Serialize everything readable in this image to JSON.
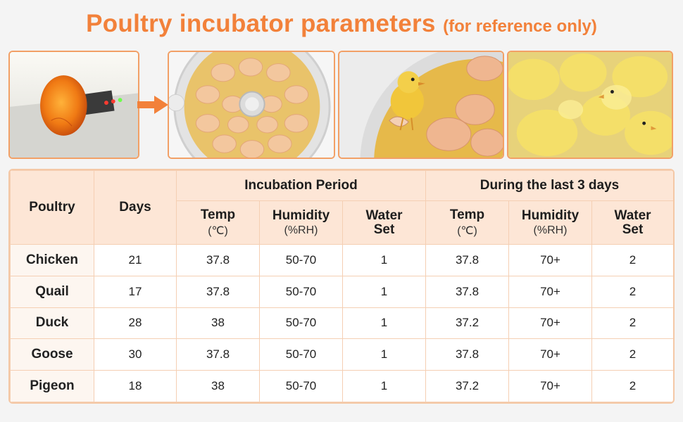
{
  "title": {
    "main": "Poultry incubator parameters",
    "sub": "(for reference only)"
  },
  "images": [
    {
      "name": "candled-egg-photo"
    },
    {
      "name": "egg-tray-photo"
    },
    {
      "name": "hatching-chick-photo"
    },
    {
      "name": "chicks-group-photo"
    }
  ],
  "table": {
    "headers": {
      "poultry": "Poultry",
      "days": "Days",
      "incubation": "Incubation Period",
      "last3": "During the last 3 days",
      "temp": "Temp",
      "temp_unit": "(℃)",
      "humidity": "Humidity",
      "humidity_unit": "(%RH)",
      "water": "Water",
      "water2": "Set"
    },
    "rows": [
      {
        "poultry": "Chicken",
        "days": "21",
        "temp": "37.8",
        "humidity": "50-70",
        "water": "1",
        "temp_last": "37.8",
        "humidity_last": "70+",
        "water_last": "2"
      },
      {
        "poultry": "Quail",
        "days": "17",
        "temp": "37.8",
        "humidity": "50-70",
        "water": "1",
        "temp_last": "37.8",
        "humidity_last": "70+",
        "water_last": "2"
      },
      {
        "poultry": "Duck",
        "days": "28",
        "temp": "38",
        "humidity": "50-70",
        "water": "1",
        "temp_last": "37.2",
        "humidity_last": "70+",
        "water_last": "2"
      },
      {
        "poultry": "Goose",
        "days": "30",
        "temp": "37.8",
        "humidity": "50-70",
        "water": "1",
        "temp_last": "37.8",
        "humidity_last": "70+",
        "water_last": "2"
      },
      {
        "poultry": "Pigeon",
        "days": "18",
        "temp": "38",
        "humidity": "50-70",
        "water": "1",
        "temp_last": "37.2",
        "humidity_last": "70+",
        "water_last": "2"
      }
    ]
  },
  "colors": {
    "accent": "#f2813a",
    "header_bg": "#fde6d6",
    "border": "#f5cfb3"
  }
}
